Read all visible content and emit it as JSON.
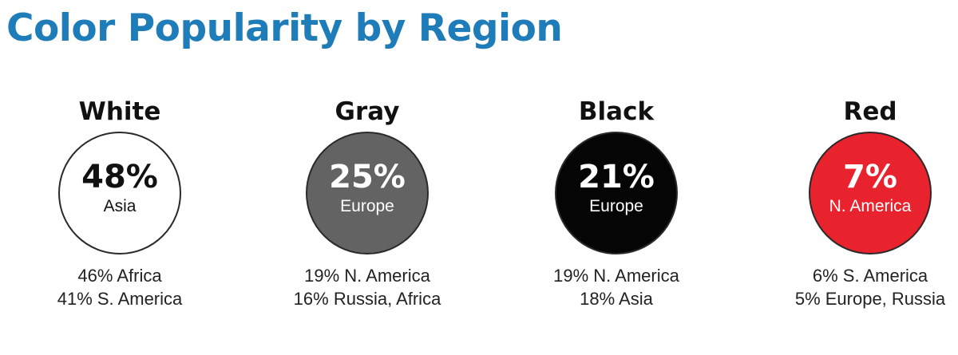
{
  "title": "Color Popularity by Region",
  "chart_data": {
    "type": "table",
    "title": "Color Popularity by Region",
    "colors": [
      {
        "name": "White",
        "fill": "#ffffff",
        "text_color": "#111111",
        "top": {
          "value": 48,
          "label": "48%",
          "region": "Asia"
        },
        "others": [
          {
            "value": 46,
            "label": "46% Africa"
          },
          {
            "value": 41,
            "label": "41% S. America"
          }
        ]
      },
      {
        "name": "Gray",
        "fill": "#636363",
        "text_color": "#ffffff",
        "top": {
          "value": 25,
          "label": "25%",
          "region": "Europe"
        },
        "others": [
          {
            "value": 19,
            "label": "19% N. America"
          },
          {
            "value": 16,
            "label": "16% Russia, Africa"
          }
        ]
      },
      {
        "name": "Black",
        "fill": "#050505",
        "text_color": "#ffffff",
        "top": {
          "value": 21,
          "label": "21%",
          "region": "Europe"
        },
        "others": [
          {
            "value": 19,
            "label": "19% N. America"
          },
          {
            "value": 18,
            "label": "18% Asia"
          }
        ]
      },
      {
        "name": "Red",
        "fill": "#e8232e",
        "text_color": "#ffffff",
        "top": {
          "value": 7,
          "label": "7%",
          "region": "N. America"
        },
        "others": [
          {
            "value": 6,
            "label": "6% S. America"
          },
          {
            "value": 5,
            "label": "5% Europe, Russia"
          }
        ]
      }
    ]
  }
}
